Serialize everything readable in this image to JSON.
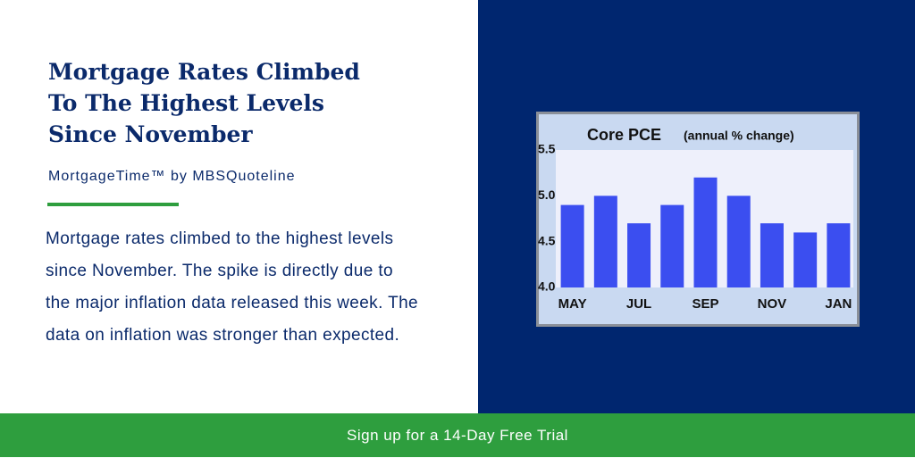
{
  "title": [
    "Mortgage Rates Climbed",
    "To The Highest Levels",
    "Since November"
  ],
  "byline": "MortgageTime™ by MBSQuoteline",
  "body": "Mortgage rates climbed to the highest levels since November. The spike is directly due to the major inflation data released this week. The data on inflation was stronger than expected.",
  "cta": "Sign up for a 14-Day Free Trial",
  "chart_data": {
    "type": "bar",
    "title": "Core PCE",
    "subtitle": "(annual % change)",
    "categories": [
      "MAY",
      null,
      "JUL",
      null,
      "SEP",
      null,
      "NOV",
      null,
      "JAN"
    ],
    "values": [
      4.9,
      5.0,
      4.7,
      4.9,
      5.2,
      5.0,
      4.7,
      4.6,
      4.7
    ],
    "color": "#3b4ef0",
    "ylim": [
      4.0,
      5.5
    ],
    "yticks": [
      {
        "value": 4.0,
        "label": "4.0"
      },
      4.5,
      {
        "value": 5.0,
        "label": "5.0"
      },
      5.5
    ],
    "grid": false
  }
}
